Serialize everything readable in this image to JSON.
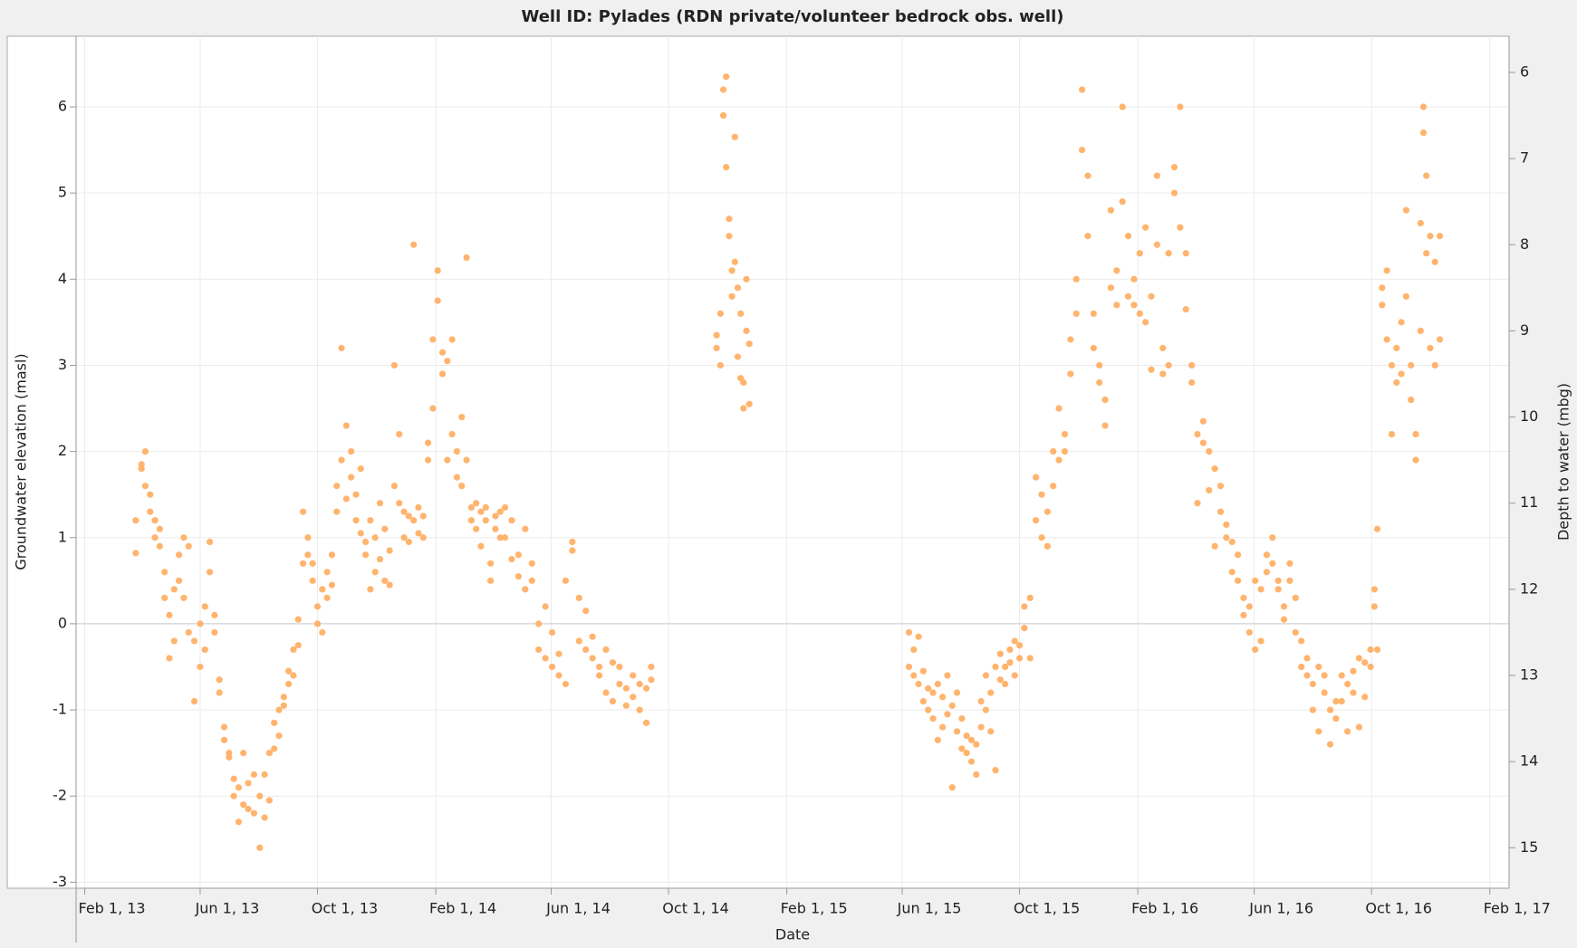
{
  "chart_data": {
    "type": "scatter",
    "title": "Well ID: Pylades (RDN private/volunteer bedrock obs. well)",
    "xlabel": "Date",
    "ylabel": "Groundwater elevation (masl)",
    "y2label": "Depth to water (mbg)",
    "color": "#ffb46e",
    "grid": true,
    "xlim": [
      "2013-01-23",
      "2017-02-21"
    ],
    "xticks": [
      {
        "value": "2013-02-01",
        "label": "Feb 1, 13"
      },
      {
        "value": "2013-06-01",
        "label": "Jun 1, 13"
      },
      {
        "value": "2013-10-01",
        "label": "Oct 1, 13"
      },
      {
        "value": "2014-02-01",
        "label": "Feb 1, 14"
      },
      {
        "value": "2014-06-01",
        "label": "Jun 1, 14"
      },
      {
        "value": "2014-10-01",
        "label": "Oct 1, 14"
      },
      {
        "value": "2015-02-01",
        "label": "Feb 1, 15"
      },
      {
        "value": "2015-06-01",
        "label": "Jun 1, 15"
      },
      {
        "value": "2015-10-01",
        "label": "Oct 1, 15"
      },
      {
        "value": "2016-02-01",
        "label": "Feb 1, 16"
      },
      {
        "value": "2016-06-01",
        "label": "Jun 1, 16"
      },
      {
        "value": "2016-10-01",
        "label": "Oct 1, 16"
      },
      {
        "value": "2017-02-01",
        "label": "Feb 1, 17"
      }
    ],
    "ylim": [
      -3.07,
      6.82
    ],
    "yticks": [
      -3,
      -2,
      -1,
      0,
      1,
      2,
      3,
      4,
      5,
      6
    ],
    "y2lim": [
      15.47,
      5.58
    ],
    "y2ticks": [
      6,
      7,
      8,
      9,
      10,
      11,
      12,
      13,
      14,
      15
    ],
    "x": [
      "2013-03-26",
      "2013-03-26",
      "2013-04-01",
      "2013-04-01",
      "2013-04-05",
      "2013-04-05",
      "2013-04-10",
      "2013-04-10",
      "2013-04-15",
      "2013-04-15",
      "2013-04-20",
      "2013-04-20",
      "2013-04-25",
      "2013-04-25",
      "2013-04-30",
      "2013-04-30",
      "2013-05-05",
      "2013-05-05",
      "2013-05-10",
      "2013-05-10",
      "2013-05-15",
      "2013-05-15",
      "2013-05-20",
      "2013-05-20",
      "2013-05-26",
      "2013-05-26",
      "2013-06-01",
      "2013-06-01",
      "2013-06-06",
      "2013-06-06",
      "2013-06-11",
      "2013-06-11",
      "2013-06-16",
      "2013-06-16",
      "2013-06-21",
      "2013-06-21",
      "2013-06-26",
      "2013-06-26",
      "2013-07-01",
      "2013-07-01",
      "2013-07-06",
      "2013-07-06",
      "2013-07-11",
      "2013-07-11",
      "2013-07-16",
      "2013-07-16",
      "2013-07-21",
      "2013-07-21",
      "2013-07-27",
      "2013-07-27",
      "2013-08-02",
      "2013-08-02",
      "2013-08-07",
      "2013-08-07",
      "2013-08-12",
      "2013-08-12",
      "2013-08-17",
      "2013-08-17",
      "2013-08-22",
      "2013-08-22",
      "2013-08-27",
      "2013-08-27",
      "2013-09-01",
      "2013-09-01",
      "2013-09-06",
      "2013-09-06",
      "2013-09-11",
      "2013-09-11",
      "2013-09-16",
      "2013-09-16",
      "2013-09-21",
      "2013-09-21",
      "2013-09-26",
      "2013-09-26",
      "2013-10-01",
      "2013-10-01",
      "2013-10-06",
      "2013-10-06",
      "2013-10-11",
      "2013-10-11",
      "2013-10-16",
      "2013-10-16",
      "2013-10-21",
      "2013-10-21",
      "2013-10-26",
      "2013-10-26",
      "2013-10-31",
      "2013-10-31",
      "2013-11-05",
      "2013-11-05",
      "2013-11-10",
      "2013-11-10",
      "2013-11-15",
      "2013-11-15",
      "2013-11-20",
      "2013-11-20",
      "2013-11-25",
      "2013-11-25",
      "2013-11-30",
      "2013-11-30",
      "2013-12-05",
      "2013-12-05",
      "2013-12-10",
      "2013-12-10",
      "2013-12-15",
      "2013-12-15",
      "2013-12-20",
      "2013-12-20",
      "2013-12-25",
      "2013-12-25",
      "2013-12-30",
      "2013-12-30",
      "2014-01-04",
      "2014-01-04",
      "2014-01-09",
      "2014-01-09",
      "2014-01-14",
      "2014-01-14",
      "2014-01-19",
      "2014-01-19",
      "2014-01-24",
      "2014-01-24",
      "2014-01-29",
      "2014-01-29",
      "2014-02-03",
      "2014-02-03",
      "2014-02-08",
      "2014-02-08",
      "2014-02-13",
      "2014-02-13",
      "2014-02-18",
      "2014-02-18",
      "2014-02-23",
      "2014-02-23",
      "2014-02-28",
      "2014-02-28",
      "2014-03-05",
      "2014-03-05",
      "2014-03-10",
      "2014-03-10",
      "2014-03-15",
      "2014-03-15",
      "2014-03-20",
      "2014-03-20",
      "2014-03-25",
      "2014-03-25",
      "2014-03-30",
      "2014-03-30",
      "2014-04-04",
      "2014-04-04",
      "2014-04-09",
      "2014-04-09",
      "2014-04-14",
      "2014-04-14",
      "2014-04-21",
      "2014-04-21",
      "2014-04-28",
      "2014-04-28",
      "2014-05-05",
      "2014-05-05",
      "2014-05-12",
      "2014-05-12",
      "2014-05-19",
      "2014-05-19",
      "2014-05-26",
      "2014-05-26",
      "2014-06-02",
      "2014-06-02",
      "2014-06-09",
      "2014-06-09",
      "2014-06-16",
      "2014-06-16",
      "2014-06-23",
      "2014-06-23",
      "2014-06-30",
      "2014-06-30",
      "2014-07-07",
      "2014-07-07",
      "2014-07-14",
      "2014-07-14",
      "2014-07-21",
      "2014-07-21",
      "2014-07-28",
      "2014-07-28",
      "2014-08-04",
      "2014-08-04",
      "2014-08-11",
      "2014-08-11",
      "2014-08-18",
      "2014-08-18",
      "2014-08-25",
      "2014-08-25",
      "2014-09-01",
      "2014-09-01",
      "2014-09-08",
      "2014-09-08",
      "2014-09-13",
      "2014-09-13",
      "2014-11-20",
      "2014-11-20",
      "2014-11-24",
      "2014-11-24",
      "2014-11-27",
      "2014-11-27",
      "2014-11-30",
      "2014-11-30",
      "2014-12-03",
      "2014-12-03",
      "2014-12-06",
      "2014-12-06",
      "2014-12-09",
      "2014-12-09",
      "2014-12-12",
      "2014-12-12",
      "2014-12-15",
      "2014-12-15",
      "2014-12-18",
      "2014-12-18",
      "2014-12-21",
      "2014-12-21",
      "2014-12-24",
      "2014-12-24",
      "2015-06-08",
      "2015-06-08",
      "2015-06-13",
      "2015-06-13",
      "2015-06-18",
      "2015-06-18",
      "2015-06-23",
      "2015-06-23",
      "2015-06-28",
      "2015-06-28",
      "2015-07-03",
      "2015-07-03",
      "2015-07-08",
      "2015-07-08",
      "2015-07-13",
      "2015-07-13",
      "2015-07-18",
      "2015-07-18",
      "2015-07-23",
      "2015-07-23",
      "2015-07-28",
      "2015-07-28",
      "2015-08-02",
      "2015-08-02",
      "2015-08-07",
      "2015-08-07",
      "2015-08-12",
      "2015-08-12",
      "2015-08-17",
      "2015-08-17",
      "2015-08-22",
      "2015-08-22",
      "2015-08-27",
      "2015-08-27",
      "2015-09-01",
      "2015-09-01",
      "2015-09-06",
      "2015-09-06",
      "2015-09-11",
      "2015-09-11",
      "2015-09-16",
      "2015-09-16",
      "2015-09-21",
      "2015-09-21",
      "2015-09-26",
      "2015-09-26",
      "2015-10-01",
      "2015-10-01",
      "2015-10-06",
      "2015-10-06",
      "2015-10-12",
      "2015-10-12",
      "2015-10-18",
      "2015-10-18",
      "2015-10-24",
      "2015-10-24",
      "2015-10-30",
      "2015-10-30",
      "2015-11-05",
      "2015-11-05",
      "2015-11-11",
      "2015-11-11",
      "2015-11-17",
      "2015-11-17",
      "2015-11-23",
      "2015-11-23",
      "2015-11-29",
      "2015-11-29",
      "2015-12-05",
      "2015-12-05",
      "2015-12-11",
      "2015-12-11",
      "2015-12-17",
      "2015-12-17",
      "2015-12-23",
      "2015-12-23",
      "2015-12-29",
      "2015-12-29",
      "2016-01-04",
      "2016-01-04",
      "2016-01-10",
      "2016-01-10",
      "2016-01-16",
      "2016-01-16",
      "2016-01-22",
      "2016-01-22",
      "2016-01-28",
      "2016-01-28",
      "2016-02-03",
      "2016-02-03",
      "2016-02-09",
      "2016-02-09",
      "2016-02-15",
      "2016-02-15",
      "2016-02-21",
      "2016-02-21",
      "2016-02-27",
      "2016-02-27",
      "2016-03-04",
      "2016-03-04",
      "2016-03-10",
      "2016-03-10",
      "2016-03-16",
      "2016-03-16",
      "2016-03-22",
      "2016-03-22",
      "2016-03-28",
      "2016-03-28",
      "2016-04-03",
      "2016-04-03",
      "2016-04-09",
      "2016-04-09",
      "2016-04-15",
      "2016-04-15",
      "2016-04-21",
      "2016-04-21",
      "2016-04-27",
      "2016-04-27",
      "2016-05-03",
      "2016-05-03",
      "2016-05-09",
      "2016-05-09",
      "2016-05-15",
      "2016-05-15",
      "2016-05-21",
      "2016-05-21",
      "2016-05-27",
      "2016-05-27",
      "2016-06-02",
      "2016-06-02",
      "2016-06-08",
      "2016-06-08",
      "2016-06-14",
      "2016-06-14",
      "2016-06-20",
      "2016-06-20",
      "2016-06-26",
      "2016-06-26",
      "2016-07-02",
      "2016-07-02",
      "2016-07-08",
      "2016-07-08",
      "2016-07-14",
      "2016-07-14",
      "2016-07-20",
      "2016-07-20",
      "2016-07-26",
      "2016-07-26",
      "2016-08-01",
      "2016-08-01",
      "2016-08-07",
      "2016-08-07",
      "2016-08-13",
      "2016-08-13",
      "2016-08-19",
      "2016-08-19",
      "2016-08-25",
      "2016-08-25",
      "2016-08-31",
      "2016-08-31",
      "2016-09-06",
      "2016-09-06",
      "2016-09-12",
      "2016-09-12",
      "2016-09-18",
      "2016-09-18",
      "2016-09-24",
      "2016-09-24",
      "2016-09-30",
      "2016-09-30",
      "2016-10-04",
      "2016-10-04",
      "2016-10-07",
      "2016-10-07",
      "2016-10-12",
      "2016-10-12",
      "2016-10-17",
      "2016-10-17",
      "2016-10-22",
      "2016-10-22",
      "2016-10-27",
      "2016-10-27",
      "2016-11-01",
      "2016-11-01",
      "2016-11-06",
      "2016-11-06",
      "2016-11-11",
      "2016-11-11",
      "2016-11-16",
      "2016-11-16",
      "2016-11-21",
      "2016-11-21",
      "2016-11-24",
      "2016-11-24",
      "2016-11-27",
      "2016-11-27",
      "2016-12-01",
      "2016-12-01",
      "2016-12-06",
      "2016-12-06",
      "2016-12-11",
      "2016-12-11"
    ],
    "values": [
      1.2,
      0.82,
      1.8,
      1.85,
      2.0,
      1.6,
      1.5,
      1.3,
      1.2,
      1.0,
      0.9,
      1.1,
      0.6,
      0.3,
      -0.4,
      0.1,
      -0.2,
      0.4,
      0.8,
      0.5,
      1.0,
      0.3,
      0.9,
      -0.1,
      -0.9,
      -0.2,
      -0.5,
      0.0,
      -0.3,
      0.2,
      0.95,
      0.6,
      0.1,
      -0.1,
      -0.8,
      -0.65,
      -1.2,
      -1.35,
      -1.5,
      -1.55,
      -1.8,
      -2.0,
      -2.3,
      -1.9,
      -2.1,
      -1.5,
      -2.15,
      -1.85,
      -2.2,
      -1.75,
      -2.6,
      -2.0,
      -1.75,
      -2.25,
      -2.05,
      -1.5,
      -1.45,
      -1.15,
      -1.3,
      -1.0,
      -0.85,
      -0.95,
      -0.7,
      -0.55,
      -0.3,
      -0.6,
      0.05,
      -0.25,
      0.7,
      1.3,
      0.8,
      1.0,
      0.5,
      0.7,
      0.2,
      0.0,
      0.4,
      -0.1,
      0.3,
      0.6,
      0.45,
      0.8,
      1.3,
      1.6,
      3.2,
      1.9,
      2.3,
      1.45,
      1.7,
      2.0,
      1.5,
      1.2,
      1.8,
      1.05,
      0.8,
      0.95,
      0.4,
      1.2,
      1.0,
      0.6,
      1.4,
      0.75,
      0.5,
      1.1,
      0.45,
      0.85,
      1.6,
      3.0,
      2.2,
      1.4,
      1.3,
      1.0,
      1.25,
      0.95,
      4.4,
      1.2,
      1.35,
      1.05,
      1.25,
      1.0,
      1.9,
      2.1,
      3.3,
      2.5,
      4.1,
      3.75,
      2.9,
      3.15,
      3.05,
      1.9,
      2.2,
      3.3,
      2.0,
      1.7,
      1.6,
      2.4,
      4.25,
      1.9,
      1.35,
      1.2,
      1.4,
      1.1,
      1.3,
      0.9,
      1.2,
      1.35,
      0.7,
      0.5,
      1.1,
      1.25,
      1.3,
      1.0,
      1.35,
      1.0,
      1.2,
      0.75,
      0.55,
      0.8,
      1.1,
      0.4,
      0.7,
      0.5,
      -0.3,
      0.0,
      0.2,
      -0.4,
      -0.1,
      -0.5,
      -0.35,
      -0.6,
      -0.7,
      0.5,
      0.85,
      0.95,
      0.3,
      -0.2,
      0.15,
      -0.3,
      -0.4,
      -0.15,
      -0.6,
      -0.5,
      -0.3,
      -0.8,
      -0.9,
      -0.45,
      -0.7,
      -0.5,
      -0.75,
      -0.95,
      -0.6,
      -0.85,
      -0.7,
      -1.0,
      -0.75,
      -1.15,
      -0.5,
      -0.65,
      3.2,
      3.35,
      3.6,
      3.0,
      6.2,
      5.9,
      6.35,
      5.3,
      4.7,
      4.5,
      4.1,
      3.8,
      5.65,
      4.2,
      3.9,
      3.1,
      2.85,
      3.6,
      2.5,
      2.8,
      4.0,
      3.4,
      3.25,
      2.55,
      -0.1,
      -0.5,
      -0.3,
      -0.6,
      -0.15,
      -0.7,
      -0.9,
      -0.55,
      -1.0,
      -0.75,
      -1.1,
      -0.8,
      -1.35,
      -0.7,
      -1.2,
      -0.85,
      -0.6,
      -1.05,
      -1.9,
      -0.95,
      -1.25,
      -0.8,
      -1.45,
      -1.1,
      -1.5,
      -1.3,
      -1.6,
      -1.35,
      -1.75,
      -1.4,
      -1.2,
      -0.9,
      -1.0,
      -0.6,
      -1.25,
      -0.8,
      -1.7,
      -0.5,
      -0.65,
      -0.35,
      -0.5,
      -0.7,
      -0.3,
      -0.45,
      -0.2,
      -0.6,
      -0.4,
      -0.25,
      -0.05,
      0.2,
      -0.4,
      0.3,
      1.2,
      1.7,
      1.0,
      1.5,
      1.3,
      0.9,
      1.6,
      2.0,
      1.9,
      2.5,
      2.2,
      2.0,
      2.9,
      3.3,
      3.6,
      4.0,
      5.5,
      6.2,
      5.2,
      4.5,
      3.2,
      3.6,
      2.8,
      3.0,
      2.6,
      2.3,
      4.8,
      3.9,
      4.1,
      3.7,
      6.0,
      4.9,
      3.8,
      4.5,
      3.7,
      4.0,
      3.6,
      4.3,
      3.5,
      4.6,
      2.95,
      3.8,
      5.2,
      4.4,
      3.2,
      2.9,
      3.0,
      4.3,
      5.3,
      5.0,
      6.0,
      4.6,
      3.65,
      4.3,
      3.0,
      2.8,
      1.4,
      2.2,
      2.35,
      2.1,
      1.55,
      2.0,
      1.8,
      0.9,
      1.6,
      1.3,
      1.15,
      1.0,
      0.95,
      0.6,
      0.8,
      0.5,
      0.1,
      0.3,
      0.2,
      -0.1,
      0.5,
      -0.3,
      0.4,
      -0.2,
      0.6,
      0.8,
      0.7,
      1.0,
      0.4,
      0.5,
      0.2,
      0.05,
      0.7,
      0.5,
      0.3,
      -0.1,
      -0.5,
      -0.2,
      -0.6,
      -0.4,
      -0.7,
      -1.0,
      -0.5,
      -1.25,
      -0.8,
      -0.6,
      -1.0,
      -1.4,
      -0.9,
      -1.1,
      -0.6,
      -0.9,
      -0.7,
      -1.25,
      -0.55,
      -0.8,
      -1.2,
      -0.4,
      -0.45,
      -0.85,
      -0.3,
      -0.5,
      0.4,
      0.2,
      1.1,
      -0.3,
      3.7,
      3.9,
      4.1,
      3.3,
      2.2,
      3.0,
      2.8,
      3.2,
      3.5,
      2.9,
      4.8,
      3.8,
      3.0,
      2.6,
      1.9,
      2.2,
      3.4,
      4.65,
      6.0,
      5.7,
      4.3,
      5.2,
      3.2,
      4.5,
      3.0,
      4.2,
      4.5,
      3.3
    ]
  }
}
